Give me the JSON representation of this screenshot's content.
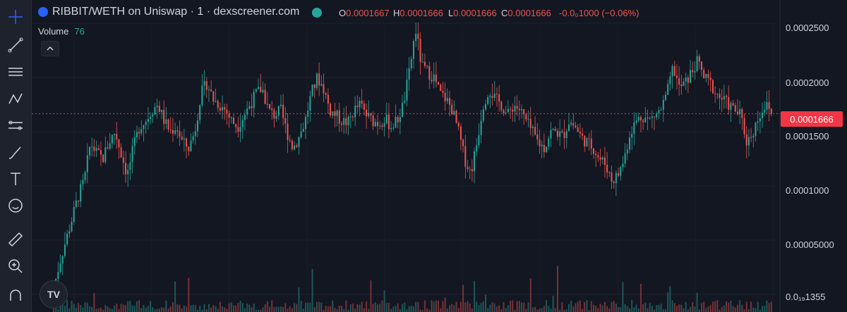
{
  "header": {
    "pair": "RIBBIT/WETH on Uniswap",
    "interval": "1",
    "source": "dexscreener.com",
    "title_full": "RIBBIT/WETH on Uniswap · 1 · dexscreener.com",
    "ohlc": {
      "o_key": "O",
      "o_val": "0.0001667",
      "h_key": "H",
      "h_val": "0.0001666",
      "l_key": "L",
      "l_val": "0.0001666",
      "c_key": "C",
      "c_val": "0.0001666",
      "change": "-0.0₀1000 (−0.06%)"
    }
  },
  "volume": {
    "label": "Volume",
    "value": "76"
  },
  "price_axis": {
    "labels": [
      "0.0002500",
      "0.0002000",
      "0.0001500",
      "0.0001000",
      "0.00005000",
      "0.0₁₉1355"
    ],
    "current_price": "0.0001666"
  },
  "toolbar": [
    {
      "name": "crosshair-icon"
    },
    {
      "name": "trend-line-icon"
    },
    {
      "name": "horizontal-lines-icon"
    },
    {
      "name": "pattern-icon"
    },
    {
      "name": "forecast-icon"
    },
    {
      "name": "brush-icon"
    },
    {
      "name": "text-icon",
      "glyph": "T"
    },
    {
      "name": "emoji-icon"
    },
    {
      "name": "ruler-icon"
    },
    {
      "name": "zoom-in-icon"
    },
    {
      "name": "magnet-icon"
    }
  ],
  "colors": {
    "up": "#26a69a",
    "down": "#ef5350",
    "background": "#131722",
    "price_tag": "#f23645"
  },
  "chart_data": {
    "type": "candlestick",
    "ylim": [
      0,
      0.00025
    ],
    "current_price": 0.0001666,
    "close_series": [
      5e-06,
      3e-05,
      5e-05,
      7e-05,
      9e-05,
      0.000105,
      0.00014,
      0.00013,
      0.000125,
      0.00014,
      0.00015,
      0.00013,
      0.00011,
      0.000135,
      0.000155,
      0.00016,
      0.00017,
      0.000175,
      0.00016,
      0.00015,
      0.000155,
      0.00014,
      0.000135,
      0.00015,
      0.000185,
      0.000195,
      0.00018,
      0.000175,
      0.00017,
      0.00016,
      0.000155,
      0.000165,
      0.000175,
      0.000185,
      0.00019,
      0.00017,
      0.000165,
      0.00017,
      0.00015,
      0.000135,
      0.000145,
      0.00016,
      0.000185,
      0.0002,
      0.00019,
      0.00017,
      0.000165,
      0.00016,
      0.000158,
      0.00017,
      0.000175,
      0.000165,
      0.00016,
      0.000158,
      0.000162,
      0.000155,
      0.00016,
      0.000175,
      0.000205,
      0.000245,
      0.00021,
      0.000205,
      0.0002,
      0.000185,
      0.00018,
      0.00017,
      0.00015,
      0.000125,
      0.000112,
      0.00014,
      0.000175,
      0.00019,
      0.00018,
      0.000175,
      0.000165,
      0.000175,
      0.00017,
      0.00016,
      0.00015,
      0.00014,
      0.000135,
      0.00015,
      0.00015,
      0.000145,
      0.00016,
      0.000155,
      0.000145,
      0.00014,
      0.000135,
      0.000125,
      0.00012,
      0.000105,
      0.00011,
      0.000125,
      0.00015,
      0.00016,
      0.000165,
      0.00016,
      0.000165,
      0.00017,
      0.000185,
      0.00021,
      0.00019,
      0.000195,
      0.000205,
      0.000215,
      0.0002,
      0.000195,
      0.000185,
      0.00018,
      0.000175,
      0.00017,
      0.000165,
      0.00014,
      0.00015,
      0.000165,
      0.000175,
      0.000167
    ]
  }
}
